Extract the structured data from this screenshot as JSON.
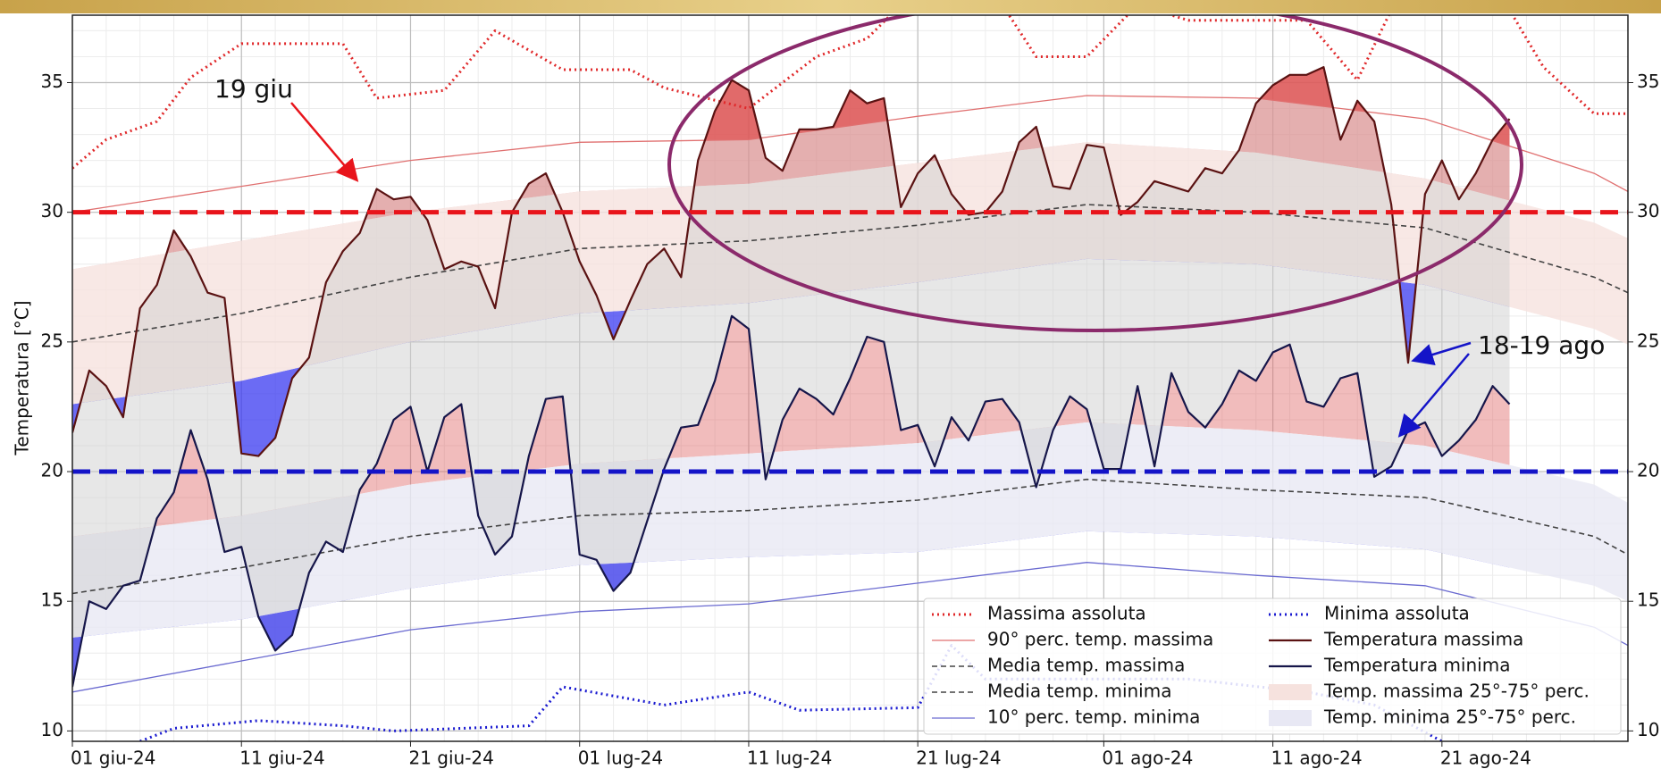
{
  "chart_data": {
    "type": "line",
    "y_label": "Temperatura [°C]",
    "xlim": [
      "2024-06-01",
      "2024-09-01"
    ],
    "xticks": [
      {
        "value": "2024-06-01",
        "label": "01 giu-24"
      },
      {
        "value": "2024-06-11",
        "label": "11 giu-24"
      },
      {
        "value": "2024-06-21",
        "label": "21 giu-24"
      },
      {
        "value": "2024-07-01",
        "label": "01 lug-24"
      },
      {
        "value": "2024-07-11",
        "label": "11 lug-24"
      },
      {
        "value": "2024-07-21",
        "label": "21 lug-24"
      },
      {
        "value": "2024-08-01",
        "label": "01 ago-24"
      },
      {
        "value": "2024-08-11",
        "label": "11 ago-24"
      },
      {
        "value": "2024-08-21",
        "label": "21 ago-24"
      }
    ],
    "ylim": [
      9.6,
      37.6
    ],
    "yticks": [
      10,
      15,
      20,
      25,
      30,
      35
    ],
    "grid": true,
    "legend": "lower right",
    "thresholds": [
      {
        "value": 30,
        "color": "#e8141b"
      },
      {
        "value": 20,
        "color": "#1414c8"
      }
    ],
    "annotations": [
      {
        "text": "19 giu",
        "color": "#e8141b"
      },
      {
        "text": "18-19 ago",
        "color": "#1414c8"
      }
    ],
    "x": [
      "2024-06-01",
      "2024-06-02",
      "2024-06-03",
      "2024-06-04",
      "2024-06-05",
      "2024-06-06",
      "2024-06-07",
      "2024-06-08",
      "2024-06-09",
      "2024-06-10",
      "2024-06-11",
      "2024-06-12",
      "2024-06-13",
      "2024-06-14",
      "2024-06-15",
      "2024-06-16",
      "2024-06-17",
      "2024-06-18",
      "2024-06-19",
      "2024-06-20",
      "2024-06-21",
      "2024-06-22",
      "2024-06-23",
      "2024-06-24",
      "2024-06-25",
      "2024-06-26",
      "2024-06-27",
      "2024-06-28",
      "2024-06-29",
      "2024-06-30",
      "2024-07-01",
      "2024-07-02",
      "2024-07-03",
      "2024-07-04",
      "2024-07-05",
      "2024-07-06",
      "2024-07-07",
      "2024-07-08",
      "2024-07-09",
      "2024-07-10",
      "2024-07-11",
      "2024-07-12",
      "2024-07-13",
      "2024-07-14",
      "2024-07-15",
      "2024-07-16",
      "2024-07-17",
      "2024-07-18",
      "2024-07-19",
      "2024-07-20",
      "2024-07-21",
      "2024-07-22",
      "2024-07-23",
      "2024-07-24",
      "2024-07-25",
      "2024-07-26",
      "2024-07-27",
      "2024-07-28",
      "2024-07-29",
      "2024-07-30",
      "2024-07-31",
      "2024-08-01",
      "2024-08-02",
      "2024-08-03",
      "2024-08-04",
      "2024-08-05",
      "2024-08-06",
      "2024-08-07",
      "2024-08-08",
      "2024-08-09",
      "2024-08-10",
      "2024-08-11",
      "2024-08-12",
      "2024-08-13",
      "2024-08-14",
      "2024-08-15",
      "2024-08-16",
      "2024-08-17",
      "2024-08-18",
      "2024-08-19",
      "2024-08-20",
      "2024-08-21",
      "2024-08-22",
      "2024-08-23",
      "2024-08-24",
      "2024-08-25"
    ],
    "series": [
      {
        "name": "Massima assoluta",
        "color": "#e0282a",
        "style": "dotted",
        "x": [
          "2024-06-01",
          "2024-06-03",
          "2024-06-06",
          "2024-06-08",
          "2024-06-11",
          "2024-06-17",
          "2024-06-19",
          "2024-06-23",
          "2024-06-26",
          "2024-06-30",
          "2024-07-04",
          "2024-07-06",
          "2024-07-11",
          "2024-07-15",
          "2024-07-18",
          "2024-07-20",
          "2024-07-26",
          "2024-07-28",
          "2024-07-31",
          "2024-08-03",
          "2024-08-06",
          "2024-08-13",
          "2024-08-16",
          "2024-08-18",
          "2024-08-25",
          "2024-08-27",
          "2024-08-30",
          "2024-09-01"
        ],
        "values": [
          31.7,
          32.8,
          33.5,
          35.2,
          36.5,
          36.5,
          34.4,
          34.7,
          37.0,
          35.5,
          35.5,
          34.8,
          34.0,
          36.0,
          36.7,
          38.0,
          38.0,
          36.0,
          36.0,
          38.0,
          37.4,
          37.4,
          35.1,
          37.8,
          37.8,
          35.6,
          33.8,
          33.8
        ]
      },
      {
        "name": "90° perc. temp. massima",
        "color": "#e07070",
        "style": "solid",
        "x": [
          "2024-06-01",
          "2024-06-11",
          "2024-06-21",
          "2024-07-01",
          "2024-07-11",
          "2024-07-21",
          "2024-07-31",
          "2024-08-10",
          "2024-08-20",
          "2024-08-30",
          "2024-09-01"
        ],
        "values": [
          30.0,
          31.0,
          32.0,
          32.7,
          32.8,
          33.7,
          34.5,
          34.4,
          33.6,
          31.5,
          30.8
        ]
      },
      {
        "name": "Media temp. massima",
        "color": "#444444",
        "style": "dashed",
        "x": [
          "2024-06-01",
          "2024-06-11",
          "2024-06-21",
          "2024-07-01",
          "2024-07-11",
          "2024-07-21",
          "2024-07-31",
          "2024-08-10",
          "2024-08-20",
          "2024-08-30",
          "2024-09-01"
        ],
        "values": [
          25.0,
          26.1,
          27.5,
          28.6,
          28.9,
          29.5,
          30.3,
          30.0,
          29.4,
          27.5,
          26.9
        ]
      },
      {
        "name": "Media temp. minima",
        "color": "#444444",
        "style": "dashed",
        "x": [
          "2024-06-01",
          "2024-06-11",
          "2024-06-21",
          "2024-07-01",
          "2024-07-11",
          "2024-07-21",
          "2024-07-31",
          "2024-08-10",
          "2024-08-20",
          "2024-08-30",
          "2024-09-01"
        ],
        "values": [
          15.3,
          16.3,
          17.5,
          18.3,
          18.5,
          18.9,
          19.7,
          19.3,
          19.0,
          17.5,
          16.8
        ]
      },
      {
        "name": "10° perc. temp. minima",
        "color": "#6a6ad0",
        "style": "solid",
        "x": [
          "2024-06-01",
          "2024-06-11",
          "2024-06-21",
          "2024-07-01",
          "2024-07-11",
          "2024-07-21",
          "2024-07-31",
          "2024-08-10",
          "2024-08-20",
          "2024-08-30",
          "2024-09-01"
        ],
        "values": [
          11.5,
          12.7,
          13.9,
          14.6,
          14.9,
          15.7,
          16.5,
          16.0,
          15.6,
          14.0,
          13.3
        ]
      },
      {
        "name": "Minima assoluta",
        "color": "#1a1ad0",
        "style": "dotted",
        "x": [
          "2024-06-05",
          "2024-06-07",
          "2024-06-12",
          "2024-06-17",
          "2024-06-20",
          "2024-06-28",
          "2024-06-30",
          "2024-07-06",
          "2024-07-11",
          "2024-07-14",
          "2024-07-21",
          "2024-07-23",
          "2024-07-25",
          "2024-08-06",
          "2024-08-13",
          "2024-08-17",
          "2024-08-21"
        ],
        "values": [
          9.6,
          10.1,
          10.4,
          10.2,
          10.0,
          10.2,
          11.7,
          11.0,
          11.5,
          10.8,
          10.9,
          13.3,
          12.0,
          12.0,
          11.5,
          11.0,
          9.6
        ]
      },
      {
        "name": "Temperatura massima",
        "color": "#5a1212",
        "style": "solid",
        "values": [
          21.5,
          23.9,
          23.3,
          22.1,
          26.3,
          27.2,
          29.3,
          28.3,
          26.9,
          26.7,
          20.7,
          20.6,
          21.3,
          23.6,
          24.4,
          27.3,
          28.5,
          29.2,
          30.9,
          30.5,
          30.6,
          29.7,
          27.8,
          28.1,
          27.9,
          26.3,
          30.0,
          31.1,
          31.5,
          30.0,
          28.1,
          26.8,
          25.1,
          26.6,
          28.0,
          28.6,
          27.5,
          32.0,
          33.9,
          35.1,
          34.7,
          32.1,
          31.6,
          33.2,
          33.2,
          33.3,
          34.7,
          34.2,
          34.4,
          30.2,
          31.5,
          32.2,
          30.7,
          29.9,
          30.0,
          30.8,
          32.7,
          33.3,
          31.0,
          30.9,
          32.6,
          32.5,
          29.9,
          30.4,
          31.2,
          31.0,
          30.8,
          31.7,
          31.5,
          32.4,
          34.2,
          34.9,
          35.3,
          35.3,
          35.6,
          32.8,
          34.3,
          33.5,
          30.3,
          24.2,
          30.7,
          32.0,
          30.5,
          31.5,
          32.8,
          33.6
        ]
      },
      {
        "name": "Temperatura minima",
        "color": "#16164a",
        "style": "solid",
        "values": [
          11.7,
          15.0,
          14.7,
          15.6,
          15.8,
          18.2,
          19.2,
          21.6,
          19.7,
          16.9,
          17.1,
          14.4,
          13.1,
          13.7,
          16.1,
          17.3,
          16.9,
          19.3,
          20.3,
          22.0,
          22.5,
          20.0,
          22.1,
          22.6,
          18.3,
          16.8,
          17.5,
          20.6,
          22.8,
          22.9,
          16.8,
          16.6,
          15.4,
          16.1,
          18.1,
          20.1,
          21.7,
          21.8,
          23.5,
          26.0,
          25.5,
          19.7,
          22.0,
          23.2,
          22.8,
          22.2,
          23.6,
          25.2,
          25.0,
          21.6,
          21.8,
          20.2,
          22.1,
          21.2,
          22.7,
          22.8,
          21.9,
          19.4,
          21.6,
          22.9,
          22.4,
          20.1,
          20.1,
          23.3,
          20.2,
          23.8,
          22.3,
          21.7,
          22.6,
          23.9,
          23.5,
          24.6,
          24.9,
          22.7,
          22.5,
          23.6,
          23.8,
          19.8,
          20.2,
          21.6,
          21.9,
          20.6,
          21.2,
          22.0,
          23.3,
          22.6
        ]
      },
      {
        "name": "Temp. massima 25°-75° perc.",
        "color": "#f6e2de",
        "style": "band",
        "x": [
          "2024-06-01",
          "2024-06-11",
          "2024-06-21",
          "2024-07-01",
          "2024-07-11",
          "2024-07-21",
          "2024-07-31",
          "2024-08-10",
          "2024-08-20",
          "2024-08-30",
          "2024-09-01"
        ],
        "high": [
          27.8,
          28.9,
          30.0,
          30.8,
          31.1,
          31.9,
          32.7,
          32.3,
          31.3,
          29.6,
          29.0
        ],
        "low": [
          22.6,
          23.5,
          25.0,
          26.1,
          26.5,
          27.3,
          28.2,
          28.0,
          27.2,
          25.5,
          24.9
        ]
      },
      {
        "name": "Temp. minima 25°-75° perc.",
        "color": "#e8e8f4",
        "style": "band",
        "x": [
          "2024-06-01",
          "2024-06-11",
          "2024-06-21",
          "2024-07-01",
          "2024-07-11",
          "2024-07-21",
          "2024-07-31",
          "2024-08-10",
          "2024-08-20",
          "2024-08-30",
          "2024-09-01"
        ],
        "high": [
          17.5,
          18.3,
          19.5,
          20.3,
          20.7,
          21.1,
          21.9,
          21.6,
          21.0,
          19.5,
          18.8
        ],
        "low": [
          13.6,
          14.3,
          15.5,
          16.4,
          16.7,
          16.9,
          17.7,
          17.5,
          17.0,
          15.6,
          15.0
        ]
      }
    ]
  }
}
